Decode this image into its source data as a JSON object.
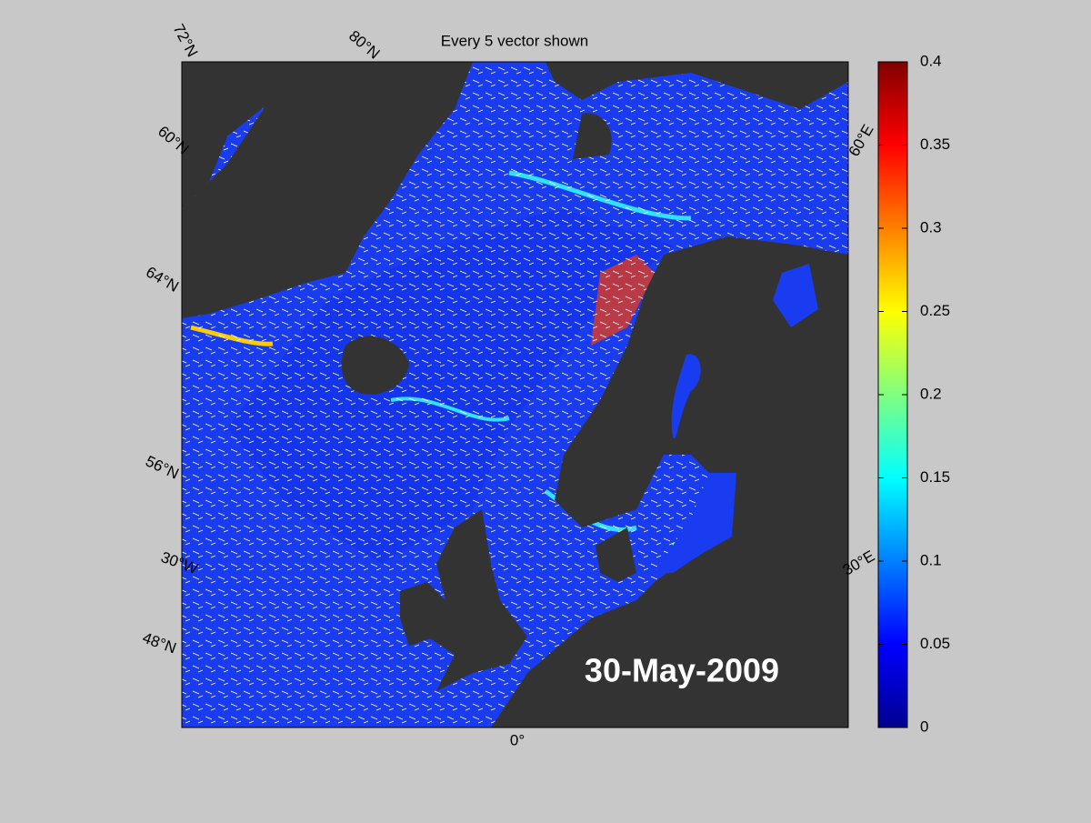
{
  "title": "Every 5 vector shown",
  "date_label": "30-May-2009",
  "graticule_labels": [
    "72°N",
    "80°N",
    "60°N",
    "64°N",
    "56°N",
    "30°W",
    "48°N",
    "0°",
    "30°E",
    "60°E"
  ],
  "colorbar": {
    "range": [
      0,
      0.4
    ],
    "ticks": [
      0,
      0.05,
      0.1,
      0.15,
      0.2,
      0.25,
      0.3,
      0.35,
      0.4
    ]
  }
}
